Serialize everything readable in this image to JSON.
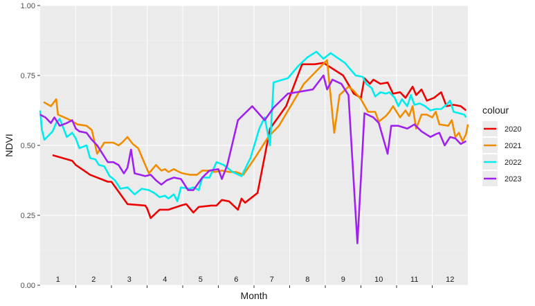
{
  "chart_data": {
    "type": "line",
    "xlabel": "Month",
    "ylabel": "NDVI",
    "xlim": [
      0,
      12
    ],
    "ylim": [
      0,
      1
    ],
    "yticks": [
      "0.00",
      "0.25",
      "0.50",
      "0.75",
      "1.00"
    ],
    "month_labels": [
      "1",
      "2",
      "3",
      "4",
      "5",
      "6",
      "7",
      "8",
      "9",
      "10",
      "11",
      "12"
    ],
    "grid": true,
    "legend_title": "colour",
    "legend_position": "right",
    "series": [
      {
        "name": "2020",
        "color": "#ee0000",
        "points": [
          [
            0.35,
            0.465
          ],
          [
            0.9,
            0.445
          ],
          [
            1.0,
            0.43
          ],
          [
            1.4,
            0.395
          ],
          [
            1.9,
            0.37
          ],
          [
            2.0,
            0.37
          ],
          [
            2.45,
            0.29
          ],
          [
            2.95,
            0.285
          ],
          [
            3.0,
            0.275
          ],
          [
            3.1,
            0.24
          ],
          [
            3.35,
            0.27
          ],
          [
            3.6,
            0.27
          ],
          [
            3.95,
            0.285
          ],
          [
            4.1,
            0.29
          ],
          [
            4.3,
            0.26
          ],
          [
            4.45,
            0.28
          ],
          [
            4.8,
            0.285
          ],
          [
            4.95,
            0.285
          ],
          [
            5.1,
            0.305
          ],
          [
            5.3,
            0.3
          ],
          [
            5.55,
            0.27
          ],
          [
            5.65,
            0.31
          ],
          [
            5.75,
            0.295
          ],
          [
            6.1,
            0.33
          ],
          [
            6.45,
            0.56
          ],
          [
            6.9,
            0.64
          ],
          [
            7.35,
            0.79
          ],
          [
            7.7,
            0.79
          ],
          [
            7.95,
            0.795
          ],
          [
            8.5,
            0.75
          ],
          [
            8.8,
            0.685
          ],
          [
            9.0,
            0.67
          ],
          [
            9.1,
            0.74
          ],
          [
            9.25,
            0.72
          ],
          [
            9.35,
            0.735
          ],
          [
            9.55,
            0.72
          ],
          [
            9.75,
            0.725
          ],
          [
            9.9,
            0.685
          ],
          [
            10.1,
            0.69
          ],
          [
            10.25,
            0.67
          ],
          [
            10.45,
            0.71
          ],
          [
            10.55,
            0.68
          ],
          [
            10.7,
            0.7
          ],
          [
            10.85,
            0.66
          ],
          [
            11.05,
            0.67
          ],
          [
            11.25,
            0.69
          ],
          [
            11.4,
            0.64
          ],
          [
            11.6,
            0.645
          ],
          [
            11.8,
            0.64
          ],
          [
            11.95,
            0.625
          ]
        ]
      },
      {
        "name": "2021",
        "color": "#f08c00",
        "points": [
          [
            0.1,
            0.655
          ],
          [
            0.3,
            0.64
          ],
          [
            0.45,
            0.665
          ],
          [
            0.5,
            0.61
          ],
          [
            0.85,
            0.59
          ],
          [
            1.05,
            0.575
          ],
          [
            1.3,
            0.57
          ],
          [
            1.45,
            0.555
          ],
          [
            1.6,
            0.47
          ],
          [
            1.8,
            0.51
          ],
          [
            2.05,
            0.51
          ],
          [
            2.2,
            0.5
          ],
          [
            2.3,
            0.51
          ],
          [
            2.45,
            0.53
          ],
          [
            2.6,
            0.505
          ],
          [
            2.75,
            0.49
          ],
          [
            2.9,
            0.445
          ],
          [
            3.05,
            0.4
          ],
          [
            3.25,
            0.43
          ],
          [
            3.4,
            0.41
          ],
          [
            3.5,
            0.415
          ],
          [
            3.6,
            0.405
          ],
          [
            3.75,
            0.415
          ],
          [
            3.9,
            0.405
          ],
          [
            4.0,
            0.4
          ],
          [
            4.2,
            0.395
          ],
          [
            4.4,
            0.395
          ],
          [
            4.55,
            0.41
          ],
          [
            4.75,
            0.41
          ],
          [
            4.9,
            0.405
          ],
          [
            5.1,
            0.41
          ],
          [
            5.3,
            0.405
          ],
          [
            5.5,
            0.405
          ],
          [
            5.7,
            0.395
          ],
          [
            6.05,
            0.46
          ],
          [
            6.4,
            0.53
          ],
          [
            6.7,
            0.57
          ],
          [
            7.4,
            0.72
          ],
          [
            8.05,
            0.805
          ],
          [
            8.25,
            0.545
          ],
          [
            8.4,
            0.68
          ],
          [
            8.65,
            0.71
          ],
          [
            8.8,
            0.695
          ],
          [
            9.0,
            0.665
          ],
          [
            9.2,
            0.62
          ],
          [
            9.4,
            0.62
          ],
          [
            9.5,
            0.585
          ],
          [
            9.7,
            0.605
          ],
          [
            9.8,
            0.62
          ],
          [
            9.9,
            0.64
          ],
          [
            10.1,
            0.6
          ],
          [
            10.25,
            0.625
          ],
          [
            10.35,
            0.605
          ],
          [
            10.45,
            0.64
          ],
          [
            10.55,
            0.56
          ],
          [
            10.7,
            0.61
          ],
          [
            10.85,
            0.61
          ],
          [
            11.0,
            0.6
          ],
          [
            11.1,
            0.62
          ],
          [
            11.2,
            0.575
          ],
          [
            11.45,
            0.57
          ],
          [
            11.55,
            0.59
          ],
          [
            11.65,
            0.53
          ],
          [
            11.75,
            0.545
          ],
          [
            11.85,
            0.515
          ],
          [
            11.95,
            0.54
          ],
          [
            12.0,
            0.575
          ]
        ]
      },
      {
        "name": "2022",
        "color": "#00ecec",
        "points": [
          [
            0.0,
            0.625
          ],
          [
            0.05,
            0.555
          ],
          [
            0.12,
            0.52
          ],
          [
            0.35,
            0.55
          ],
          [
            0.45,
            0.58
          ],
          [
            0.55,
            0.595
          ],
          [
            0.75,
            0.53
          ],
          [
            0.9,
            0.545
          ],
          [
            1.0,
            0.525
          ],
          [
            1.1,
            0.49
          ],
          [
            1.3,
            0.5
          ],
          [
            1.4,
            0.455
          ],
          [
            1.55,
            0.45
          ],
          [
            1.65,
            0.43
          ],
          [
            1.8,
            0.425
          ],
          [
            1.95,
            0.39
          ],
          [
            2.1,
            0.375
          ],
          [
            2.25,
            0.345
          ],
          [
            2.45,
            0.35
          ],
          [
            2.65,
            0.325
          ],
          [
            2.85,
            0.345
          ],
          [
            3.05,
            0.34
          ],
          [
            3.2,
            0.33
          ],
          [
            3.35,
            0.315
          ],
          [
            3.5,
            0.32
          ],
          [
            3.6,
            0.31
          ],
          [
            3.75,
            0.325
          ],
          [
            3.85,
            0.3
          ],
          [
            3.95,
            0.35
          ],
          [
            4.2,
            0.345
          ],
          [
            4.3,
            0.35
          ],
          [
            4.45,
            0.34
          ],
          [
            4.55,
            0.385
          ],
          [
            4.75,
            0.385
          ],
          [
            4.95,
            0.44
          ],
          [
            5.15,
            0.43
          ],
          [
            5.4,
            0.405
          ],
          [
            5.65,
            0.39
          ],
          [
            5.9,
            0.455
          ],
          [
            6.15,
            0.56
          ],
          [
            6.3,
            0.6
          ],
          [
            6.45,
            0.5
          ],
          [
            6.55,
            0.725
          ],
          [
            6.8,
            0.735
          ],
          [
            6.95,
            0.74
          ],
          [
            7.25,
            0.785
          ],
          [
            7.5,
            0.815
          ],
          [
            7.75,
            0.835
          ],
          [
            7.95,
            0.81
          ],
          [
            8.15,
            0.83
          ],
          [
            8.55,
            0.795
          ],
          [
            8.85,
            0.75
          ],
          [
            9.05,
            0.745
          ],
          [
            9.15,
            0.72
          ],
          [
            9.3,
            0.705
          ],
          [
            9.4,
            0.675
          ],
          [
            9.55,
            0.69
          ],
          [
            9.7,
            0.685
          ],
          [
            9.8,
            0.69
          ],
          [
            9.95,
            0.67
          ],
          [
            10.05,
            0.64
          ],
          [
            10.15,
            0.665
          ],
          [
            10.3,
            0.64
          ],
          [
            10.4,
            0.68
          ],
          [
            10.5,
            0.645
          ],
          [
            10.65,
            0.65
          ],
          [
            10.8,
            0.64
          ],
          [
            10.95,
            0.625
          ],
          [
            11.1,
            0.63
          ],
          [
            11.25,
            0.63
          ],
          [
            11.4,
            0.645
          ],
          [
            11.5,
            0.66
          ],
          [
            11.6,
            0.62
          ],
          [
            11.75,
            0.615
          ],
          [
            11.9,
            0.61
          ],
          [
            11.95,
            0.6
          ]
        ]
      },
      {
        "name": "2023",
        "color": "#a020f0",
        "points": [
          [
            0.0,
            0.61
          ],
          [
            0.15,
            0.6
          ],
          [
            0.3,
            0.58
          ],
          [
            0.4,
            0.6
          ],
          [
            0.55,
            0.57
          ],
          [
            0.75,
            0.58
          ],
          [
            0.9,
            0.59
          ],
          [
            1.0,
            0.56
          ],
          [
            1.1,
            0.55
          ],
          [
            1.3,
            0.545
          ],
          [
            1.45,
            0.52
          ],
          [
            1.6,
            0.5
          ],
          [
            1.75,
            0.47
          ],
          [
            1.9,
            0.44
          ],
          [
            2.05,
            0.44
          ],
          [
            2.2,
            0.43
          ],
          [
            2.35,
            0.4
          ],
          [
            2.45,
            0.42
          ],
          [
            2.55,
            0.485
          ],
          [
            2.65,
            0.4
          ],
          [
            2.8,
            0.395
          ],
          [
            2.95,
            0.39
          ],
          [
            3.1,
            0.395
          ],
          [
            3.25,
            0.375
          ],
          [
            3.4,
            0.36
          ],
          [
            3.55,
            0.375
          ],
          [
            3.75,
            0.385
          ],
          [
            3.95,
            0.38
          ],
          [
            4.15,
            0.34
          ],
          [
            4.3,
            0.34
          ],
          [
            4.55,
            0.385
          ],
          [
            4.75,
            0.41
          ],
          [
            5.0,
            0.415
          ],
          [
            5.1,
            0.38
          ],
          [
            5.25,
            0.43
          ],
          [
            5.55,
            0.59
          ],
          [
            5.95,
            0.64
          ],
          [
            6.3,
            0.59
          ],
          [
            6.55,
            0.635
          ],
          [
            6.95,
            0.685
          ],
          [
            7.2,
            0.69
          ],
          [
            7.65,
            0.7
          ],
          [
            7.95,
            0.75
          ],
          [
            8.05,
            0.7
          ],
          [
            8.2,
            0.735
          ],
          [
            8.45,
            0.72
          ],
          [
            8.65,
            0.68
          ],
          [
            8.9,
            0.15
          ],
          [
            9.1,
            0.615
          ],
          [
            9.35,
            0.6
          ],
          [
            9.5,
            0.58
          ],
          [
            9.75,
            0.47
          ],
          [
            9.85,
            0.57
          ],
          [
            10.05,
            0.57
          ],
          [
            10.3,
            0.56
          ],
          [
            10.5,
            0.575
          ],
          [
            10.7,
            0.55
          ],
          [
            10.95,
            0.53
          ],
          [
            11.1,
            0.54
          ],
          [
            11.2,
            0.545
          ],
          [
            11.35,
            0.5
          ],
          [
            11.5,
            0.53
          ],
          [
            11.65,
            0.525
          ],
          [
            11.8,
            0.505
          ],
          [
            11.95,
            0.515
          ]
        ]
      }
    ]
  }
}
